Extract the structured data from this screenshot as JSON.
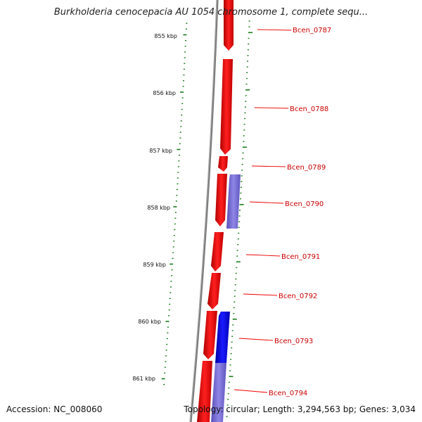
{
  "title": "Burkholderia cenocepacia AU 1054 chromosome 1, complete sequ...",
  "accession_text": "Accession: NC_008060",
  "summary_text": "Topology: circular; Length: 3,294,563 bp; Genes: 3,034",
  "colors": {
    "backbone": "#808080",
    "forward_gene": "#ff0000",
    "reverse_gene": "#0000ff",
    "reverse_gene_faded": "#7b70d8",
    "tick": "#1a7a1a",
    "gene_label": "#cc0000",
    "leader": "#ee0000"
  },
  "ruler": {
    "unit": "kbp",
    "major_ticks": [
      "855 kbp",
      "856 kbp",
      "857 kbp",
      "858 kbp",
      "859 kbp",
      "860 kbp",
      "861 kbp"
    ]
  },
  "genes": [
    {
      "name": "Bcen_0787",
      "strand": "forward"
    },
    {
      "name": "Bcen_0788",
      "strand": "forward"
    },
    {
      "name": "Bcen_0789",
      "strand": "forward"
    },
    {
      "name": "Bcen_0790",
      "strand": "reverse"
    },
    {
      "name": "Bcen_0791",
      "strand": "forward"
    },
    {
      "name": "Bcen_0792",
      "strand": "forward"
    },
    {
      "name": "Bcen_0793",
      "strand": "reverse"
    },
    {
      "name": "Bcen_0794",
      "strand": "reverse"
    }
  ]
}
